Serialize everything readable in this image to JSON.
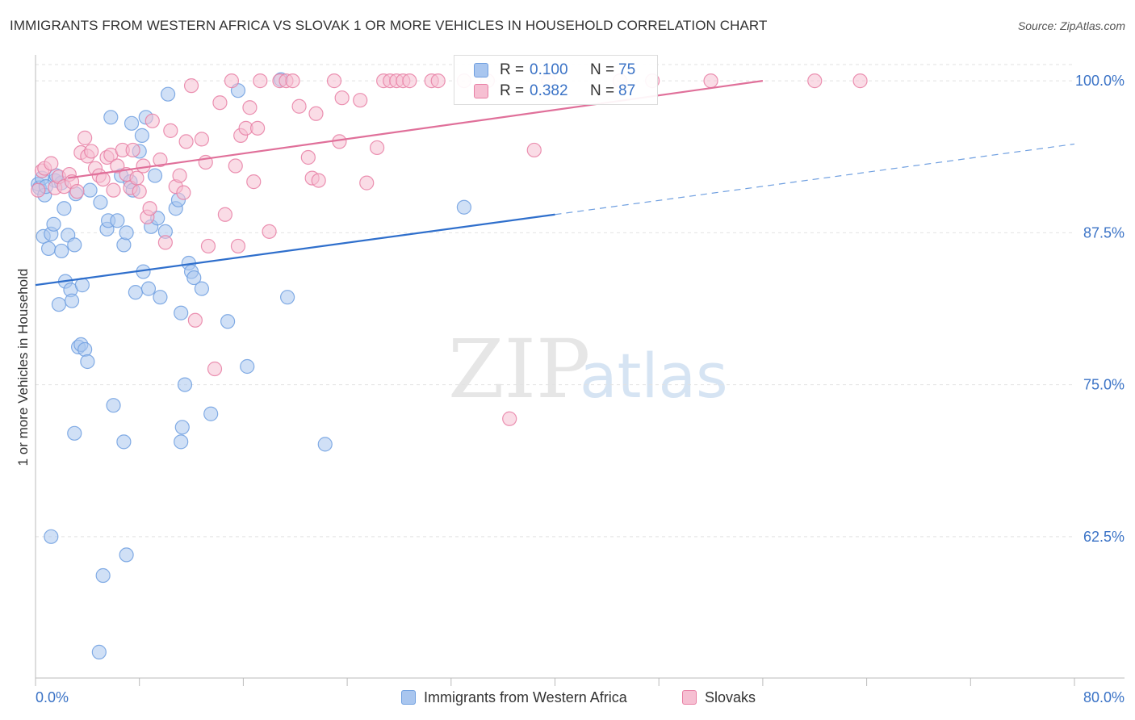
{
  "title": "IMMIGRANTS FROM WESTERN AFRICA VS SLOVAK 1 OR MORE VEHICLES IN HOUSEHOLD CORRELATION CHART",
  "source": "Source: ZipAtlas.com",
  "watermark": {
    "zip": "ZIP",
    "atlas": "atlas"
  },
  "legend_box": {
    "rows": [
      {
        "r_label": "R =",
        "r_value": "0.100",
        "n_label": "N =",
        "n_value": "75"
      },
      {
        "r_label": "R =",
        "r_value": "0.382",
        "n_label": "N =",
        "n_value": "87"
      }
    ]
  },
  "chart_data": {
    "type": "scatter",
    "title": "IMMIGRANTS FROM WESTERN AFRICA VS SLOVAK 1 OR MORE VEHICLES IN HOUSEHOLD CORRELATION CHART",
    "xlabel": "",
    "ylabel": "1 or more Vehicles in Household",
    "xlim": [
      0,
      80
    ],
    "ylim": [
      51,
      102
    ],
    "x_tick_labels": [
      "0.0%",
      "80.0%"
    ],
    "y_ticks": [
      62.5,
      75.0,
      87.5,
      100.0
    ],
    "y_tick_labels": [
      "62.5%",
      "75.0%",
      "87.5%",
      "100.0%"
    ],
    "grid": true,
    "legend": [
      "Immigrants from Western Africa",
      "Slovaks"
    ],
    "series": [
      {
        "name": "Immigrants from Western Africa",
        "color": "#6f9fe0",
        "fill": "#a9c6ef",
        "trend": {
          "x0": 0,
          "y0": 83.2,
          "x1": 40,
          "y1": 89.0,
          "x_dash_end": 80,
          "y_dash_end": 94.8
        },
        "points": [
          [
            0.2,
            91.5
          ],
          [
            0.3,
            91.2
          ],
          [
            0.5,
            92.0
          ],
          [
            0.6,
            87.2
          ],
          [
            0.7,
            90.6
          ],
          [
            1.0,
            86.2
          ],
          [
            1.2,
            87.4
          ],
          [
            1.4,
            88.2
          ],
          [
            1.5,
            91.8
          ],
          [
            1.8,
            81.6
          ],
          [
            2.0,
            86.0
          ],
          [
            2.2,
            89.5
          ],
          [
            2.3,
            83.5
          ],
          [
            2.5,
            87.3
          ],
          [
            2.7,
            82.8
          ],
          [
            2.8,
            81.9
          ],
          [
            3.0,
            86.5
          ],
          [
            3.3,
            78.1
          ],
          [
            3.5,
            78.3
          ],
          [
            3.6,
            83.2
          ],
          [
            3.8,
            77.9
          ],
          [
            4.0,
            76.9
          ],
          [
            4.2,
            91.0
          ],
          [
            5.0,
            90.0
          ],
          [
            5.5,
            87.8
          ],
          [
            5.6,
            88.5
          ],
          [
            5.8,
            97.0
          ],
          [
            6.0,
            73.3
          ],
          [
            6.3,
            88.5
          ],
          [
            6.6,
            92.2
          ],
          [
            6.8,
            86.5
          ],
          [
            7.0,
            87.5
          ],
          [
            7.3,
            91.7
          ],
          [
            7.5,
            91.0
          ],
          [
            7.7,
            82.6
          ],
          [
            8.0,
            94.2
          ],
          [
            8.2,
            95.5
          ],
          [
            8.3,
            84.3
          ],
          [
            8.5,
            97.0
          ],
          [
            8.7,
            82.9
          ],
          [
            8.9,
            88.0
          ],
          [
            9.2,
            92.2
          ],
          [
            9.4,
            88.7
          ],
          [
            9.6,
            82.2
          ],
          [
            10.0,
            87.6
          ],
          [
            10.2,
            98.9
          ],
          [
            10.8,
            89.5
          ],
          [
            11.0,
            90.2
          ],
          [
            11.2,
            80.9
          ],
          [
            11.5,
            75.0
          ],
          [
            11.8,
            85.0
          ],
          [
            12.0,
            84.3
          ],
          [
            12.2,
            83.8
          ],
          [
            12.8,
            82.9
          ],
          [
            13.5,
            72.6
          ],
          [
            14.8,
            80.2
          ],
          [
            15.6,
            99.2
          ],
          [
            16.3,
            76.5
          ],
          [
            18.9,
            100.1
          ],
          [
            19.4,
            82.2
          ],
          [
            22.3,
            70.1
          ],
          [
            33.0,
            89.6
          ],
          [
            1.2,
            62.5
          ],
          [
            3.0,
            71.0
          ],
          [
            5.2,
            59.3
          ],
          [
            6.8,
            70.3
          ],
          [
            7.0,
            61.0
          ],
          [
            11.3,
            71.5
          ],
          [
            11.2,
            70.3
          ],
          [
            4.9,
            53.0
          ],
          [
            0.8,
            91.3
          ],
          [
            2.0,
            91.6
          ],
          [
            1.6,
            92.2
          ],
          [
            7.4,
            96.5
          ],
          [
            3.1,
            90.7
          ]
        ]
      },
      {
        "name": "Slovaks",
        "color": "#e87fa4",
        "fill": "#f6bfd2",
        "trend": {
          "x0": 2.5,
          "y0": 92.0,
          "x1": 56.0,
          "y1": 100.0
        },
        "points": [
          [
            0.2,
            91.0
          ],
          [
            0.5,
            92.6
          ],
          [
            0.7,
            92.8
          ],
          [
            1.2,
            93.2
          ],
          [
            1.5,
            91.2
          ],
          [
            1.8,
            92.1
          ],
          [
            2.2,
            91.3
          ],
          [
            2.6,
            92.3
          ],
          [
            2.8,
            91.7
          ],
          [
            3.2,
            90.9
          ],
          [
            3.5,
            94.1
          ],
          [
            3.8,
            95.3
          ],
          [
            4.0,
            93.8
          ],
          [
            4.3,
            94.2
          ],
          [
            4.6,
            92.8
          ],
          [
            4.9,
            92.2
          ],
          [
            5.2,
            91.9
          ],
          [
            5.5,
            93.7
          ],
          [
            5.8,
            93.9
          ],
          [
            6.0,
            91.0
          ],
          [
            6.3,
            93.0
          ],
          [
            6.7,
            94.3
          ],
          [
            7.0,
            92.3
          ],
          [
            7.3,
            91.2
          ],
          [
            7.5,
            94.3
          ],
          [
            7.8,
            92.0
          ],
          [
            8.0,
            90.9
          ],
          [
            8.3,
            93.0
          ],
          [
            8.6,
            88.8
          ],
          [
            8.8,
            89.5
          ],
          [
            9.0,
            96.7
          ],
          [
            9.6,
            93.5
          ],
          [
            10.0,
            86.7
          ],
          [
            10.4,
            95.9
          ],
          [
            10.8,
            91.3
          ],
          [
            11.1,
            92.2
          ],
          [
            11.4,
            90.8
          ],
          [
            11.6,
            95.0
          ],
          [
            12.0,
            99.6
          ],
          [
            12.3,
            80.3
          ],
          [
            12.8,
            95.2
          ],
          [
            13.1,
            93.3
          ],
          [
            13.3,
            86.4
          ],
          [
            13.8,
            76.3
          ],
          [
            14.2,
            98.2
          ],
          [
            14.6,
            89.0
          ],
          [
            15.1,
            100.0
          ],
          [
            15.4,
            93.0
          ],
          [
            15.6,
            86.4
          ],
          [
            15.8,
            95.5
          ],
          [
            16.2,
            96.1
          ],
          [
            16.5,
            97.8
          ],
          [
            16.8,
            91.7
          ],
          [
            17.1,
            96.1
          ],
          [
            17.3,
            100.0
          ],
          [
            18.0,
            87.6
          ],
          [
            18.8,
            100.0
          ],
          [
            19.3,
            100.0
          ],
          [
            19.8,
            100.0
          ],
          [
            20.3,
            97.9
          ],
          [
            21.0,
            93.7
          ],
          [
            21.3,
            92.0
          ],
          [
            21.6,
            97.3
          ],
          [
            21.8,
            91.8
          ],
          [
            23.0,
            100.0
          ],
          [
            23.4,
            95.0
          ],
          [
            23.6,
            98.6
          ],
          [
            25.0,
            98.4
          ],
          [
            25.5,
            91.6
          ],
          [
            26.3,
            94.5
          ],
          [
            26.8,
            100.0
          ],
          [
            27.3,
            100.0
          ],
          [
            27.8,
            100.0
          ],
          [
            28.3,
            100.0
          ],
          [
            28.8,
            100.0
          ],
          [
            30.5,
            100.0
          ],
          [
            33.0,
            100.0
          ],
          [
            34.8,
            100.0
          ],
          [
            36.5,
            72.2
          ],
          [
            38.4,
            94.3
          ],
          [
            39.5,
            100.0
          ],
          [
            45.0,
            100.0
          ],
          [
            47.5,
            100.0
          ],
          [
            52.0,
            100.0
          ],
          [
            60.0,
            100.0
          ],
          [
            63.5,
            100.0
          ],
          [
            31.0,
            100.0
          ]
        ]
      }
    ]
  }
}
